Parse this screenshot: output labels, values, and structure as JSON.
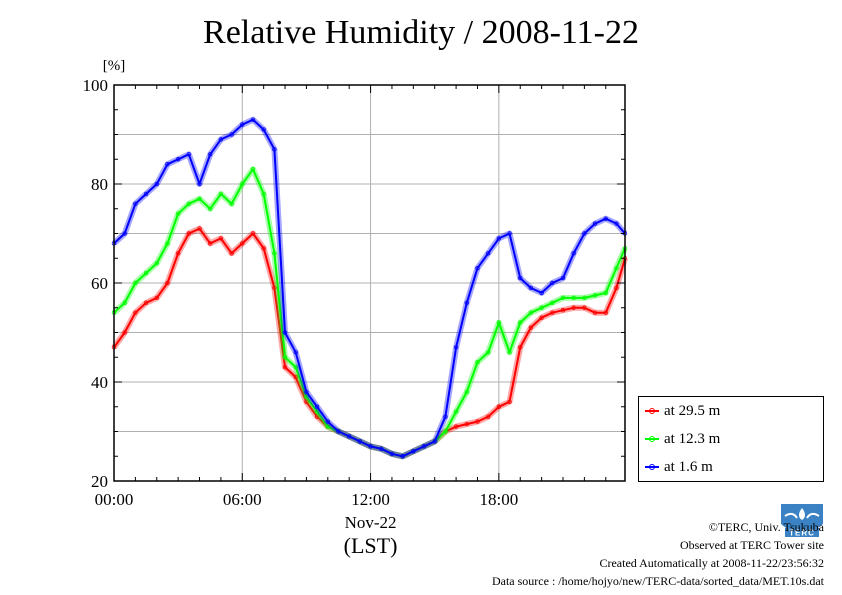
{
  "chart_data": {
    "type": "line",
    "title": "Relative Humidity / 2008-11-22",
    "ylabel": "[%]",
    "xlabel": "Nov-22",
    "xlabel2": "(LST)",
    "ylim": [
      20,
      100
    ],
    "yticks": [
      20,
      40,
      60,
      80,
      100
    ],
    "xlim": [
      0,
      23.9
    ],
    "xtick_values": [
      0,
      6,
      12,
      18
    ],
    "xtick_labels": [
      "00:00",
      "06:00",
      "12:00",
      "18:00"
    ],
    "grid": true,
    "legend_position": "bottom-right",
    "series": [
      {
        "name": "at 29.5 m",
        "color": "#ff0000",
        "x": [
          0,
          0.5,
          1,
          1.5,
          2,
          2.5,
          3,
          3.5,
          4,
          4.5,
          5,
          5.5,
          6,
          6.5,
          7,
          7.5,
          8,
          8.5,
          9,
          9.5,
          10,
          10.5,
          11,
          11.5,
          12,
          12.5,
          13,
          13.5,
          14,
          14.5,
          15,
          15.5,
          16,
          16.5,
          17,
          17.5,
          18,
          18.5,
          19,
          19.5,
          20,
          20.5,
          21,
          21.5,
          22,
          22.5,
          23,
          23.5,
          23.9
        ],
        "y": [
          47,
          50,
          54,
          56,
          57,
          60,
          66,
          70,
          71,
          68,
          69,
          66,
          68,
          70,
          67,
          59,
          43,
          41,
          36,
          33,
          31,
          30,
          29,
          28,
          27,
          26.5,
          25.5,
          25,
          26,
          27,
          28,
          30,
          31,
          31.5,
          32,
          33,
          35,
          36,
          47,
          51,
          53,
          54,
          54.5,
          55,
          55,
          54,
          54,
          59,
          65
        ]
      },
      {
        "name": "at 12.3 m",
        "color": "#00ff00",
        "x": [
          0,
          0.5,
          1,
          1.5,
          2,
          2.5,
          3,
          3.5,
          4,
          4.5,
          5,
          5.5,
          6,
          6.5,
          7,
          7.5,
          8,
          8.5,
          9,
          9.5,
          10,
          10.5,
          11,
          11.5,
          12,
          12.5,
          13,
          13.5,
          14,
          14.5,
          15,
          15.5,
          16,
          16.5,
          17,
          17.5,
          18,
          18.5,
          19,
          19.5,
          20,
          20.5,
          21,
          21.5,
          22,
          22.5,
          23,
          23.5,
          23.9
        ],
        "y": [
          54,
          56,
          60,
          62,
          64,
          68,
          74,
          76,
          77,
          75,
          78,
          76,
          80,
          83,
          78,
          66,
          45,
          43,
          37,
          34,
          31,
          30,
          29,
          28,
          27,
          26.5,
          25.5,
          25,
          26,
          27,
          28,
          30,
          34,
          38,
          44,
          46,
          52,
          46,
          52,
          54,
          55,
          56,
          57,
          57,
          57,
          57.5,
          58,
          63,
          67
        ]
      },
      {
        "name": "at 1.6 m",
        "color": "#0000ff",
        "x": [
          0,
          0.5,
          1,
          1.5,
          2,
          2.5,
          3,
          3.5,
          4,
          4.5,
          5,
          5.5,
          6,
          6.5,
          7,
          7.5,
          8,
          8.5,
          9,
          9.5,
          10,
          10.5,
          11,
          11.5,
          12,
          12.5,
          13,
          13.5,
          14,
          14.5,
          15,
          15.5,
          16,
          16.5,
          17,
          17.5,
          18,
          18.5,
          19,
          19.5,
          20,
          20.5,
          21,
          21.5,
          22,
          22.5,
          23,
          23.5,
          23.9
        ],
        "y": [
          68,
          70,
          76,
          78,
          80,
          84,
          85,
          86,
          80,
          86,
          89,
          90,
          92,
          93,
          91,
          87,
          50,
          46,
          38,
          35,
          32,
          30,
          29,
          28,
          27,
          26.5,
          25.5,
          25,
          26,
          27,
          28,
          33,
          47,
          56,
          63,
          66,
          69,
          70,
          61,
          59,
          58,
          60,
          61,
          66,
          70,
          72,
          73,
          72,
          70
        ]
      }
    ]
  },
  "footer": {
    "copyright": "©TERC, Univ. Tsukuba",
    "observed": "Observed at TERC Tower site",
    "created": "Created Automatically at 2008-11-22/23:56:32",
    "source": "Data source : /home/hojyo/new/TERC-data/sorted_data/MET.10s.dat"
  },
  "logo_text": "TERC"
}
